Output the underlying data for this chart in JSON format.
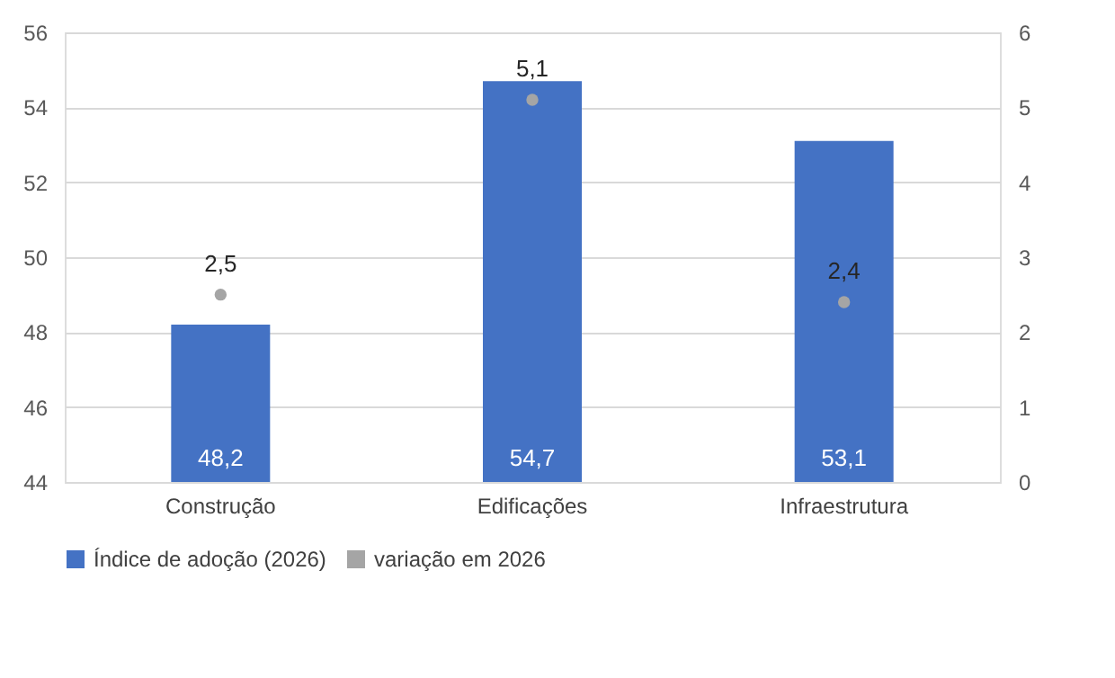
{
  "chart_data": {
    "type": "bar",
    "categories": [
      "Construção",
      "Edificações",
      "Infraestrutura"
    ],
    "series": [
      {
        "name": "Índice de adoção (2026)",
        "color": "#4472c4",
        "values": [
          48.2,
          54.7,
          53.1
        ],
        "value_labels": [
          "48,2",
          "54,7",
          "53,1"
        ]
      },
      {
        "name": "variação em 2026",
        "type": "scatter",
        "axis": "y2",
        "color": "#a5a5a5",
        "values": [
          2.5,
          5.1,
          2.4
        ],
        "value_labels": [
          "2,5",
          "5,1",
          "2,4"
        ]
      }
    ],
    "ylim": [
      44,
      56
    ],
    "yticks": [
      44,
      46,
      48,
      50,
      52,
      54,
      56
    ],
    "y2lim": [
      0,
      6
    ],
    "y2ticks": [
      0,
      1,
      2,
      3,
      4,
      5,
      6
    ],
    "grid": "y",
    "legend": "bottom",
    "marker": "circle"
  }
}
